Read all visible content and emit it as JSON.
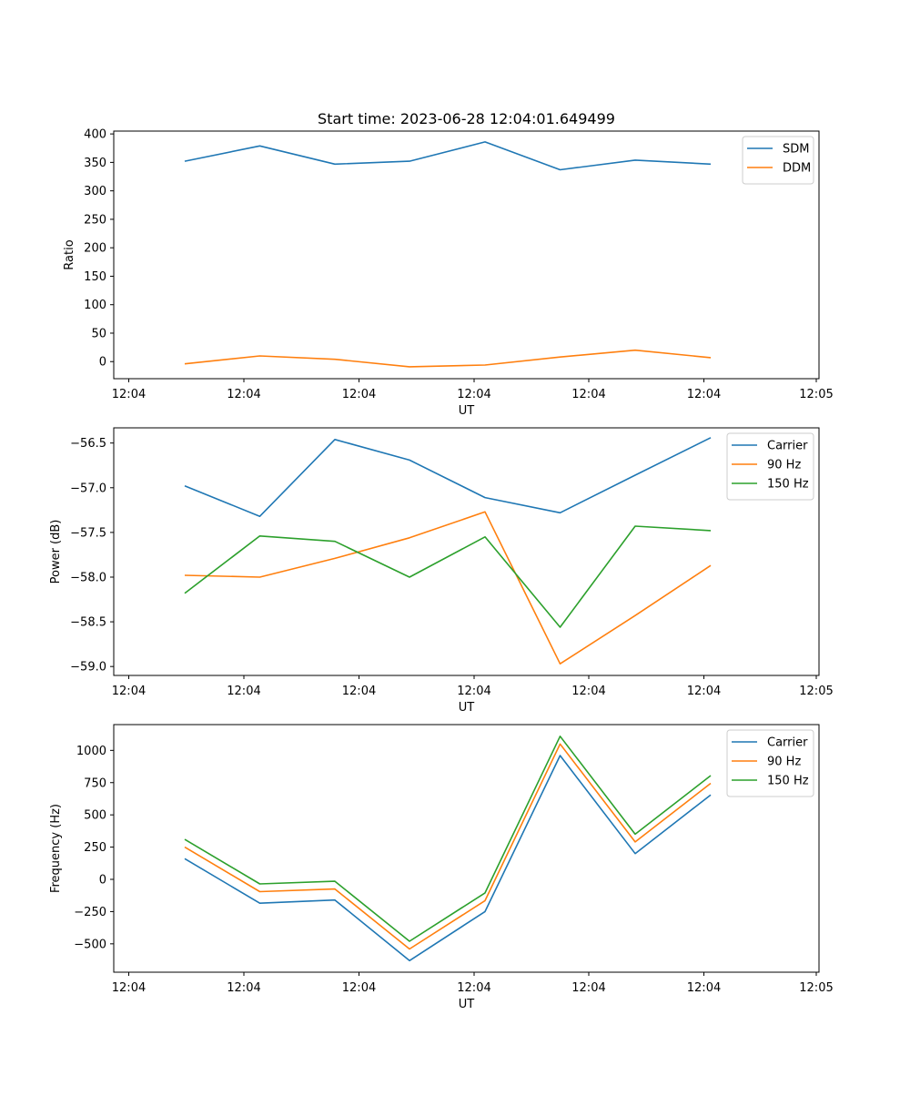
{
  "title": "Start time: 2023-06-28 12:04:01.649499",
  "chart_data": [
    {
      "type": "line",
      "xlabel": "UT",
      "ylabel": "Ratio",
      "x_tick_labels": [
        "12:04",
        "12:04",
        "12:04",
        "12:04",
        "12:04",
        "12:04",
        "12:04",
        "12:05"
      ],
      "y_ticks": [
        0,
        50,
        100,
        150,
        200,
        250,
        300,
        350,
        400
      ],
      "ylim": [
        -30,
        405
      ],
      "legend_position": "top-right",
      "series": [
        {
          "name": "SDM",
          "color": "#1f77b4",
          "values": [
            352,
            379,
            347,
            352,
            386,
            337,
            354,
            347
          ]
        },
        {
          "name": "DDM",
          "color": "#ff7f0e",
          "values": [
            -4,
            10,
            4,
            -9,
            -6,
            8,
            20,
            7
          ]
        }
      ]
    },
    {
      "type": "line",
      "xlabel": "UT",
      "ylabel": "Power (dB)",
      "x_tick_labels": [
        "12:04",
        "12:04",
        "12:04",
        "12:04",
        "12:04",
        "12:04",
        "12:04",
        "12:05"
      ],
      "y_ticks": [
        -59.0,
        -58.5,
        -58.0,
        -57.5,
        -57.0,
        -56.5
      ],
      "y_tick_labels": [
        "−59.0",
        "−58.5",
        "−58.0",
        "−57.5",
        "−57.0",
        "−56.5"
      ],
      "ylim": [
        -59.1,
        -56.33
      ],
      "legend_position": "top-right",
      "series": [
        {
          "name": "Carrier",
          "color": "#1f77b4",
          "values": [
            -56.98,
            -57.32,
            -56.46,
            -56.69,
            -57.11,
            -57.28,
            -56.86,
            -56.44
          ]
        },
        {
          "name": "90 Hz",
          "color": "#ff7f0e",
          "values": [
            -57.98,
            -58.0,
            -57.79,
            -57.56,
            -57.27,
            -58.97,
            -58.43,
            -57.87
          ]
        },
        {
          "name": "150 Hz",
          "color": "#2ca02c",
          "values": [
            -58.18,
            -57.54,
            -57.6,
            -58.0,
            -57.55,
            -58.56,
            -57.43,
            -57.48
          ]
        }
      ]
    },
    {
      "type": "line",
      "xlabel": "UT",
      "ylabel": "Frequency (Hz)",
      "x_tick_labels": [
        "12:04",
        "12:04",
        "12:04",
        "12:04",
        "12:04",
        "12:04",
        "12:04",
        "12:05"
      ],
      "y_ticks": [
        -500,
        -250,
        0,
        250,
        500,
        750,
        1000
      ],
      "y_tick_labels": [
        "−500",
        "−250",
        "0",
        "250",
        "500",
        "750",
        "1000"
      ],
      "ylim": [
        -720,
        1200
      ],
      "legend_position": "top-right",
      "series": [
        {
          "name": "Carrier",
          "color": "#1f77b4",
          "values": [
            160,
            -185,
            -160,
            -630,
            -250,
            960,
            200,
            655
          ]
        },
        {
          "name": "90 Hz",
          "color": "#ff7f0e",
          "values": [
            250,
            -95,
            -75,
            -540,
            -165,
            1050,
            290,
            745
          ]
        },
        {
          "name": "150 Hz",
          "color": "#2ca02c",
          "values": [
            310,
            -35,
            -15,
            -480,
            -105,
            1110,
            350,
            805
          ]
        }
      ]
    }
  ]
}
